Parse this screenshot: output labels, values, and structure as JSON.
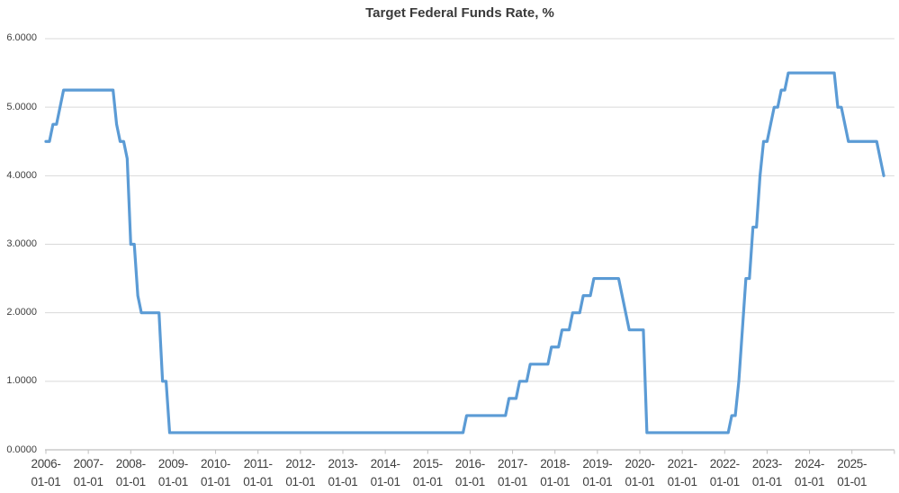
{
  "chart_data": {
    "type": "line",
    "title": "Target Federal Funds Rate, %",
    "series_name": "Target Federal Funds Rate",
    "xlabel": "",
    "ylabel": "",
    "freq": "monthly",
    "x_start": "2006-01",
    "x_end": "2025-10",
    "ylim": [
      0,
      6
    ],
    "grid": "horizontal",
    "legend_position": "none",
    "line_color": "#5B9BD5",
    "gridline_color": "#D9D9D9",
    "axis_line_color": "#BFBFBF",
    "text_color": "#3f3f3f",
    "y_tick_labels": [
      "0.0000",
      "1.0000",
      "2.0000",
      "3.0000",
      "4.0000",
      "5.0000",
      "6.0000"
    ],
    "x_tick_labels": [
      "2006-01-01",
      "2007-01-01",
      "2008-01-01",
      "2009-01-01",
      "2010-01-01",
      "2011-01-01",
      "2012-01-01",
      "2013-01-01",
      "2014-01-01",
      "2015-01-01",
      "2016-01-01",
      "2017-01-01",
      "2018-01-01",
      "2019-01-01",
      "2020-01-01",
      "2021-01-01",
      "2022-01-01",
      "2023-01-01",
      "2024-01-01",
      "2025-01-01"
    ],
    "values": [
      4.5,
      4.5,
      4.75,
      4.75,
      5.0,
      5.25,
      5.25,
      5.25,
      5.25,
      5.25,
      5.25,
      5.25,
      5.25,
      5.25,
      5.25,
      5.25,
      5.25,
      5.25,
      5.25,
      5.25,
      4.75,
      4.5,
      4.5,
      4.25,
      3.0,
      3.0,
      2.25,
      2.0,
      2.0,
      2.0,
      2.0,
      2.0,
      2.0,
      1.0,
      1.0,
      0.25,
      0.25,
      0.25,
      0.25,
      0.25,
      0.25,
      0.25,
      0.25,
      0.25,
      0.25,
      0.25,
      0.25,
      0.25,
      0.25,
      0.25,
      0.25,
      0.25,
      0.25,
      0.25,
      0.25,
      0.25,
      0.25,
      0.25,
      0.25,
      0.25,
      0.25,
      0.25,
      0.25,
      0.25,
      0.25,
      0.25,
      0.25,
      0.25,
      0.25,
      0.25,
      0.25,
      0.25,
      0.25,
      0.25,
      0.25,
      0.25,
      0.25,
      0.25,
      0.25,
      0.25,
      0.25,
      0.25,
      0.25,
      0.25,
      0.25,
      0.25,
      0.25,
      0.25,
      0.25,
      0.25,
      0.25,
      0.25,
      0.25,
      0.25,
      0.25,
      0.25,
      0.25,
      0.25,
      0.25,
      0.25,
      0.25,
      0.25,
      0.25,
      0.25,
      0.25,
      0.25,
      0.25,
      0.25,
      0.25,
      0.25,
      0.25,
      0.25,
      0.25,
      0.25,
      0.25,
      0.25,
      0.25,
      0.25,
      0.25,
      0.5,
      0.5,
      0.5,
      0.5,
      0.5,
      0.5,
      0.5,
      0.5,
      0.5,
      0.5,
      0.5,
      0.5,
      0.75,
      0.75,
      0.75,
      1.0,
      1.0,
      1.0,
      1.25,
      1.25,
      1.25,
      1.25,
      1.25,
      1.25,
      1.5,
      1.5,
      1.5,
      1.75,
      1.75,
      1.75,
      2.0,
      2.0,
      2.0,
      2.25,
      2.25,
      2.25,
      2.5,
      2.5,
      2.5,
      2.5,
      2.5,
      2.5,
      2.5,
      2.5,
      2.25,
      2.0,
      1.75,
      1.75,
      1.75,
      1.75,
      1.75,
      0.25,
      0.25,
      0.25,
      0.25,
      0.25,
      0.25,
      0.25,
      0.25,
      0.25,
      0.25,
      0.25,
      0.25,
      0.25,
      0.25,
      0.25,
      0.25,
      0.25,
      0.25,
      0.25,
      0.25,
      0.25,
      0.25,
      0.25,
      0.25,
      0.5,
      0.5,
      1.0,
      1.75,
      2.5,
      2.5,
      3.25,
      3.25,
      4.0,
      4.5,
      4.5,
      4.75,
      5.0,
      5.0,
      5.25,
      5.25,
      5.5,
      5.5,
      5.5,
      5.5,
      5.5,
      5.5,
      5.5,
      5.5,
      5.5,
      5.5,
      5.5,
      5.5,
      5.5,
      5.5,
      5.0,
      5.0,
      4.75,
      4.5,
      4.5,
      4.5,
      4.5,
      4.5,
      4.5,
      4.5,
      4.5,
      4.5,
      4.25,
      4.0
    ]
  }
}
